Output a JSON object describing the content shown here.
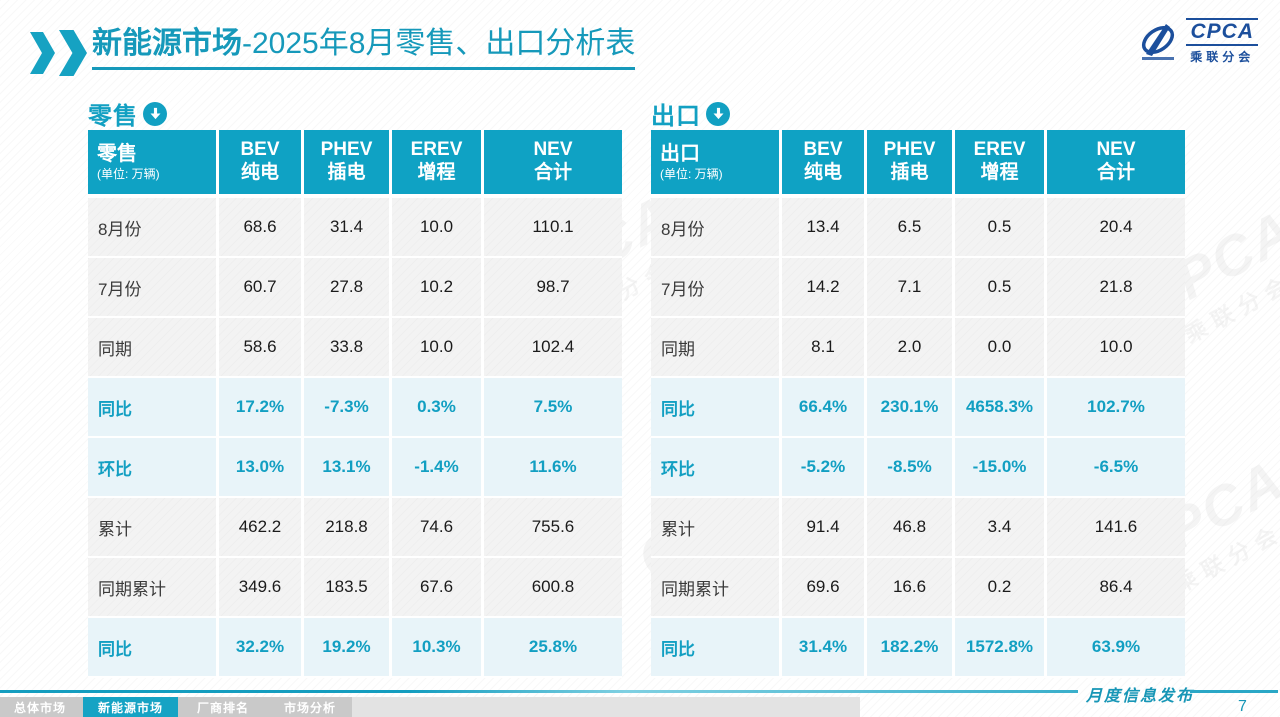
{
  "slide": {
    "title_bold": "新能源市场",
    "title_rest": "-2025年8月零售、出口分析表",
    "footer_label": "月度信息发布",
    "page_number": "7"
  },
  "logo": {
    "name": "CPCA",
    "subtitle": "乘联分会"
  },
  "watermark": {
    "text": "CPCA",
    "subtext": "乘联分会"
  },
  "colors": {
    "accent_teal": "#12a0c2",
    "table_header_bg": "#0fa2c4",
    "pct_row_bg": "#e8f4f9",
    "normal_row_bg": "#f3f3f3",
    "logo_blue": "#1c4f9c",
    "footer_teal": "#1796b6"
  },
  "nav": {
    "items": [
      {
        "label": "总体市场",
        "active": false
      },
      {
        "label": "新能源市场",
        "active": true
      },
      {
        "label": "厂商排名",
        "active": false
      },
      {
        "label": "市场分析",
        "active": false
      }
    ]
  },
  "tables": [
    {
      "section_label": "零售",
      "corner_title": "零售",
      "corner_unit": "(单位: 万辆)",
      "columns": [
        {
          "line1": "BEV",
          "line2": "纯电"
        },
        {
          "line1": "PHEV",
          "line2": "插电"
        },
        {
          "line1": "EREV",
          "line2": "增程"
        },
        {
          "line1": "NEV",
          "line2": "合计"
        }
      ],
      "rows": [
        {
          "label": "8月份",
          "type": "normal",
          "values": [
            "68.6",
            "31.4",
            "10.0",
            "110.1"
          ]
        },
        {
          "label": "7月份",
          "type": "normal",
          "values": [
            "60.7",
            "27.8",
            "10.2",
            "98.7"
          ]
        },
        {
          "label": "同期",
          "type": "normal",
          "values": [
            "58.6",
            "33.8",
            "10.0",
            "102.4"
          ]
        },
        {
          "label": "同比",
          "type": "pct",
          "values": [
            "17.2%",
            "-7.3%",
            "0.3%",
            "7.5%"
          ]
        },
        {
          "label": "环比",
          "type": "pct",
          "values": [
            "13.0%",
            "13.1%",
            "-1.4%",
            "11.6%"
          ]
        },
        {
          "label": "累计",
          "type": "normal",
          "values": [
            "462.2",
            "218.8",
            "74.6",
            "755.6"
          ]
        },
        {
          "label": "同期累计",
          "type": "normal",
          "values": [
            "349.6",
            "183.5",
            "67.6",
            "600.8"
          ]
        },
        {
          "label": "同比",
          "type": "pct",
          "values": [
            "32.2%",
            "19.2%",
            "10.3%",
            "25.8%"
          ]
        }
      ]
    },
    {
      "section_label": "出口",
      "corner_title": "出口",
      "corner_unit": "(单位: 万辆)",
      "columns": [
        {
          "line1": "BEV",
          "line2": "纯电"
        },
        {
          "line1": "PHEV",
          "line2": "插电"
        },
        {
          "line1": "EREV",
          "line2": "增程"
        },
        {
          "line1": "NEV",
          "line2": "合计"
        }
      ],
      "rows": [
        {
          "label": "8月份",
          "type": "normal",
          "values": [
            "13.4",
            "6.5",
            "0.5",
            "20.4"
          ]
        },
        {
          "label": "7月份",
          "type": "normal",
          "values": [
            "14.2",
            "7.1",
            "0.5",
            "21.8"
          ]
        },
        {
          "label": "同期",
          "type": "normal",
          "values": [
            "8.1",
            "2.0",
            "0.0",
            "10.0"
          ]
        },
        {
          "label": "同比",
          "type": "pct",
          "values": [
            "66.4%",
            "230.1%",
            "4658.3%",
            "102.7%"
          ]
        },
        {
          "label": "环比",
          "type": "pct",
          "values": [
            "-5.2%",
            "-8.5%",
            "-15.0%",
            "-6.5%"
          ]
        },
        {
          "label": "累计",
          "type": "normal",
          "values": [
            "91.4",
            "46.8",
            "3.4",
            "141.6"
          ]
        },
        {
          "label": "同期累计",
          "type": "normal",
          "values": [
            "69.6",
            "16.6",
            "0.2",
            "86.4"
          ]
        },
        {
          "label": "同比",
          "type": "pct",
          "values": [
            "31.4%",
            "182.2%",
            "1572.8%",
            "63.9%"
          ]
        }
      ]
    }
  ]
}
